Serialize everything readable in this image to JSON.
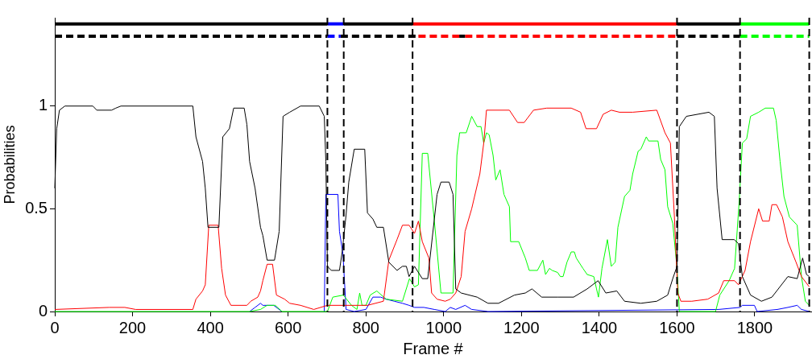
{
  "chart_data": {
    "type": "line",
    "xlabel": "Frame #",
    "ylabel": "Probabilities",
    "xlim": [
      0,
      1945
    ],
    "xticks": [
      0,
      200,
      400,
      600,
      800,
      1000,
      1200,
      1400,
      1600,
      1800
    ],
    "ylim": [
      0,
      1.43
    ],
    "yticks": [
      0,
      0.5,
      1
    ],
    "grid": false,
    "legend": false,
    "series": [
      {
        "color": "#000000",
        "x": [
          0,
          5,
          12,
          26,
          98,
          108,
          146,
          157,
          170,
          355,
          363,
          380,
          387,
          394,
          422,
          432,
          449,
          460,
          487,
          494,
          501,
          515,
          529,
          535,
          546,
          565,
          577,
          587,
          604,
          632,
          680,
          693,
          697,
          701,
          711,
          732,
          739,
          749,
          756,
          770,
          797,
          804,
          818,
          828,
          845,
          859,
          880,
          894,
          904,
          911,
          925,
          945,
          959,
          983,
          993,
          1014,
          1024,
          1031,
          1045,
          1086,
          1114,
          1141,
          1182,
          1210,
          1227,
          1252,
          1293,
          1334,
          1369,
          1397,
          1417,
          1445,
          1465,
          1507,
          1548,
          1576,
          1589,
          1600,
          1606,
          1624,
          1682,
          1696,
          1703,
          1716,
          1747,
          1758,
          1768,
          1789,
          1817,
          1844,
          1885,
          1909,
          1923,
          1933,
          1940
        ],
        "values": [
          0.6,
          0.89,
          0.98,
          1,
          1,
          0.98,
          0.98,
          0.99,
          1,
          1,
          0.85,
          0.73,
          0.6,
          0.41,
          0.41,
          0.85,
          0.89,
          0.99,
          0.99,
          0.91,
          0.73,
          0.6,
          0.41,
          0.37,
          0.25,
          0.25,
          0.39,
          0.95,
          0.97,
          1,
          1,
          0.95,
          0.73,
          0.22,
          0.2,
          0.2,
          0.29,
          0.47,
          0.63,
          0.79,
          0.79,
          0.48,
          0.45,
          0.41,
          0.41,
          0.24,
          0.2,
          0.22,
          0.22,
          0.17,
          0.22,
          0.16,
          0.16,
          0.57,
          0.63,
          0.63,
          0.57,
          0.11,
          0.09,
          0.07,
          0.04,
          0.04,
          0.08,
          0.09,
          0.11,
          0.07,
          0.07,
          0.07,
          0.11,
          0.15,
          0.09,
          0.1,
          0.05,
          0.04,
          0.05,
          0.08,
          0.16,
          0.22,
          0.9,
          0.95,
          0.97,
          0.95,
          0.6,
          0.35,
          0.35,
          0.33,
          0.17,
          0.08,
          0.05,
          0.07,
          0.17,
          0.16,
          0.26,
          0.18,
          0.17
        ]
      },
      {
        "color": "#ff0000",
        "x": [
          0,
          140,
          180,
          208,
          355,
          363,
          380,
          387,
          396,
          420,
          429,
          439,
          453,
          494,
          504,
          522,
          529,
          535,
          546,
          560,
          570,
          591,
          604,
          632,
          666,
          701,
          804,
          845,
          859,
          880,
          894,
          911,
          925,
          935,
          945,
          962,
          969,
          983,
          1004,
          1017,
          1031,
          1045,
          1055,
          1072,
          1093,
          1103,
          1110,
          1169,
          1190,
          1207,
          1231,
          1265,
          1328,
          1352,
          1366,
          1393,
          1410,
          1431,
          1452,
          1486,
          1548,
          1569,
          1583,
          1593,
          1602,
          1610,
          1638,
          1679,
          1707,
          1720,
          1748,
          1758,
          1775,
          1789,
          1810,
          1820,
          1837,
          1844,
          1856,
          1871,
          1885,
          1906,
          1920,
          1940
        ],
        "values": [
          0.01,
          0.02,
          0.02,
          0.01,
          0.01,
          0.06,
          0.1,
          0.13,
          0.42,
          0.42,
          0.21,
          0.08,
          0.03,
          0.03,
          0.05,
          0.07,
          0.1,
          0.15,
          0.23,
          0.23,
          0.08,
          0.06,
          0.04,
          0.03,
          0.01,
          0.03,
          0.03,
          0.05,
          0.25,
          0.35,
          0.42,
          0.42,
          0.38,
          0.44,
          0.34,
          0.26,
          0.09,
          0.06,
          0.05,
          0.06,
          0.09,
          0.17,
          0.39,
          0.5,
          0.67,
          0.82,
          0.98,
          0.98,
          0.92,
          0.92,
          0.98,
          0.99,
          0.99,
          0.97,
          0.89,
          0.89,
          0.96,
          0.98,
          0.97,
          0.97,
          0.98,
          0.87,
          0.82,
          0.47,
          0.09,
          0.05,
          0.05,
          0.06,
          0.09,
          0.15,
          0.15,
          0.13,
          0.2,
          0.34,
          0.5,
          0.44,
          0.44,
          0.52,
          0.52,
          0.46,
          0.34,
          0.24,
          0.17,
          0.12
        ]
      },
      {
        "color": "#00ff00",
        "x": [
          0,
          501,
          529,
          546,
          567,
          584,
          701,
          715,
          742,
          763,
          777,
          784,
          790,
          800,
          811,
          828,
          852,
          894,
          912,
          925,
          935,
          945,
          959,
          976,
          993,
          1024,
          1034,
          1041,
          1058,
          1072,
          1086,
          1096,
          1103,
          1110,
          1117,
          1127,
          1134,
          1145,
          1155,
          1169,
          1172,
          1193,
          1210,
          1220,
          1241,
          1255,
          1262,
          1272,
          1279,
          1293,
          1300,
          1307,
          1317,
          1328,
          1336,
          1341,
          1358,
          1369,
          1386,
          1393,
          1398,
          1407,
          1421,
          1431,
          1441,
          1448,
          1465,
          1479,
          1486,
          1500,
          1507,
          1521,
          1527,
          1551,
          1558,
          1569,
          1576,
          1589,
          1600,
          1606,
          1699,
          1710,
          1734,
          1748,
          1760,
          1768,
          1779,
          1789,
          1810,
          1827,
          1848,
          1855,
          1865,
          1875,
          1889,
          1909,
          1920,
          1930,
          1940
        ],
        "values": [
          0,
          0,
          0.01,
          0.03,
          0.03,
          0,
          0,
          0.07,
          0.08,
          0.03,
          0.01,
          0.09,
          0.03,
          0.03,
          0.08,
          0.1,
          0.06,
          0.05,
          0.16,
          0.12,
          0.13,
          0.77,
          0.77,
          0.44,
          0.09,
          0.09,
          0.76,
          0.87,
          0.87,
          0.95,
          0.9,
          0.9,
          0.82,
          0.87,
          0.86,
          0.76,
          0.64,
          0.69,
          0.57,
          0.51,
          0.34,
          0.34,
          0.26,
          0.2,
          0.2,
          0.25,
          0.18,
          0.21,
          0.2,
          0.19,
          0.17,
          0.17,
          0.24,
          0.29,
          0.29,
          0.26,
          0.21,
          0.18,
          0.17,
          0.11,
          0.07,
          0.21,
          0.35,
          0.22,
          0.24,
          0.41,
          0.56,
          0.59,
          0.67,
          0.78,
          0.79,
          0.85,
          0.83,
          0.83,
          0.74,
          0.69,
          0.51,
          0.43,
          0.21,
          0,
          0,
          0.08,
          0.15,
          0.21,
          0.54,
          0.82,
          0.84,
          0.95,
          0.97,
          0.99,
          0.99,
          0.93,
          0.73,
          0.56,
          0.46,
          0.42,
          0.17,
          0.05,
          0.03
        ]
      },
      {
        "color": "#0000ff",
        "x": [
          501,
          515,
          529,
          535,
          563,
          584,
          640,
          693,
          697,
          728,
          732,
          741,
          749,
          770,
          800,
          818,
          838,
          852,
          873,
          894,
          911,
          925,
          949,
          976,
          1004,
          1017,
          1031,
          1055,
          1072,
          1114,
          1707,
          1762,
          1768,
          1799,
          1806,
          1858,
          1885,
          1909,
          1920,
          1940
        ],
        "values": [
          0,
          0.02,
          0.04,
          0.03,
          0.03,
          0,
          null,
          0,
          0.57,
          0.57,
          0.39,
          0.28,
          0.01,
          0,
          0.01,
          0.07,
          0.07,
          0.06,
          0.05,
          0.04,
          0.03,
          0.02,
          0.02,
          0.01,
          0,
          0.02,
          0.01,
          0.03,
          0.01,
          0,
          0.01,
          0.02,
          0.03,
          0.03,
          0,
          0.01,
          0.02,
          0.03,
          0.01,
          0
        ]
      },
      {
        "color": "#000000",
        "x": [
          0,
          701
        ],
        "values": [
          1.4,
          1.4
        ]
      },
      {
        "color": "#0000ff",
        "x": [
          701,
          743
        ],
        "values": [
          1.4,
          1.4
        ]
      },
      {
        "color": "#000000",
        "x": [
          743,
          920
        ],
        "values": [
          1.4,
          1.4
        ]
      },
      {
        "color": "#ff0000",
        "x": [
          920,
          1600
        ],
        "values": [
          1.4,
          1.4
        ]
      },
      {
        "color": "#000000",
        "x": [
          1600,
          1762
        ],
        "values": [
          1.4,
          1.4
        ]
      },
      {
        "color": "#00ff00",
        "x": [
          1762,
          1940
        ],
        "values": [
          1.4,
          1.4
        ]
      },
      {
        "color": "#000000",
        "line_style": "dashed",
        "x": [
          0,
          701
        ],
        "values": [
          1.34,
          1.34
        ]
      },
      {
        "color": "#0000ff",
        "line_style": "dashed",
        "x": [
          701,
          735
        ],
        "values": [
          1.34,
          1.34
        ]
      },
      {
        "color": "#000000",
        "line_style": "dashed",
        "x": [
          735,
          935
        ],
        "values": [
          1.34,
          1.34
        ]
      },
      {
        "color": "#ff0000",
        "line_style": "dashed",
        "x": [
          935,
          1040
        ],
        "values": [
          1.34,
          1.34
        ]
      },
      {
        "color": "#000000",
        "line_style": "dashed",
        "x": [
          1040,
          1055
        ],
        "values": [
          1.34,
          1.34
        ]
      },
      {
        "color": "#ff0000",
        "line_style": "dashed",
        "x": [
          1055,
          1600
        ],
        "values": [
          1.34,
          1.34
        ]
      },
      {
        "color": "#000000",
        "line_style": "dashed",
        "x": [
          1600,
          1762
        ],
        "values": [
          1.34,
          1.34
        ]
      },
      {
        "color": "#00ff00",
        "line_style": "dashed",
        "x": [
          1762,
          1940
        ],
        "values": [
          1.34,
          1.34
        ]
      }
    ],
    "ref_lines": [
      {
        "axis": "x",
        "value": 701,
        "color": "#000000",
        "line_style": "dashed"
      },
      {
        "axis": "x",
        "value": 743,
        "color": "#000000",
        "line_style": "dashed"
      },
      {
        "axis": "x",
        "value": 920,
        "color": "#000000",
        "line_style": "dashed"
      },
      {
        "axis": "x",
        "value": 1600,
        "color": "#000000",
        "line_style": "dashed"
      },
      {
        "axis": "x",
        "value": 1762,
        "color": "#000000",
        "line_style": "dashed"
      },
      {
        "axis": "x",
        "value": 1940,
        "color": "#000000",
        "line_style": "dashed"
      }
    ]
  }
}
